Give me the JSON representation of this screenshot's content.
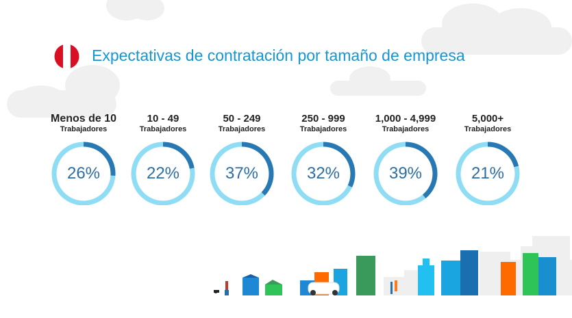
{
  "title": "Expectativas de contratación por tamaño de empresa",
  "flag": {
    "country": "Peru",
    "colors": [
      "#d91023",
      "#ffffff",
      "#d91023"
    ]
  },
  "colors": {
    "ring_track": "#8fddf4",
    "ring_value": "#2878b4",
    "title": "#1396d3",
    "percent_text": "#2a6ea8"
  },
  "groups": [
    {
      "label": "Menos de 10",
      "sublabel": "Trabajadores",
      "value": 26,
      "display": "26%"
    },
    {
      "label": "10 - 49",
      "sublabel": "Trabajadores",
      "value": 22,
      "display": "22%"
    },
    {
      "label": "50 - 249",
      "sublabel": "Trabajadores",
      "value": 37,
      "display": "37%"
    },
    {
      "label": "250 - 999",
      "sublabel": "Trabajadores",
      "value": 32,
      "display": "32%"
    },
    {
      "label": "1,000 - 4,999",
      "sublabel": "Trabajadores",
      "value": 39,
      "display": "39%"
    },
    {
      "label": "5,000+",
      "sublabel": "Trabajadores",
      "value": 21,
      "display": "21%"
    }
  ]
}
